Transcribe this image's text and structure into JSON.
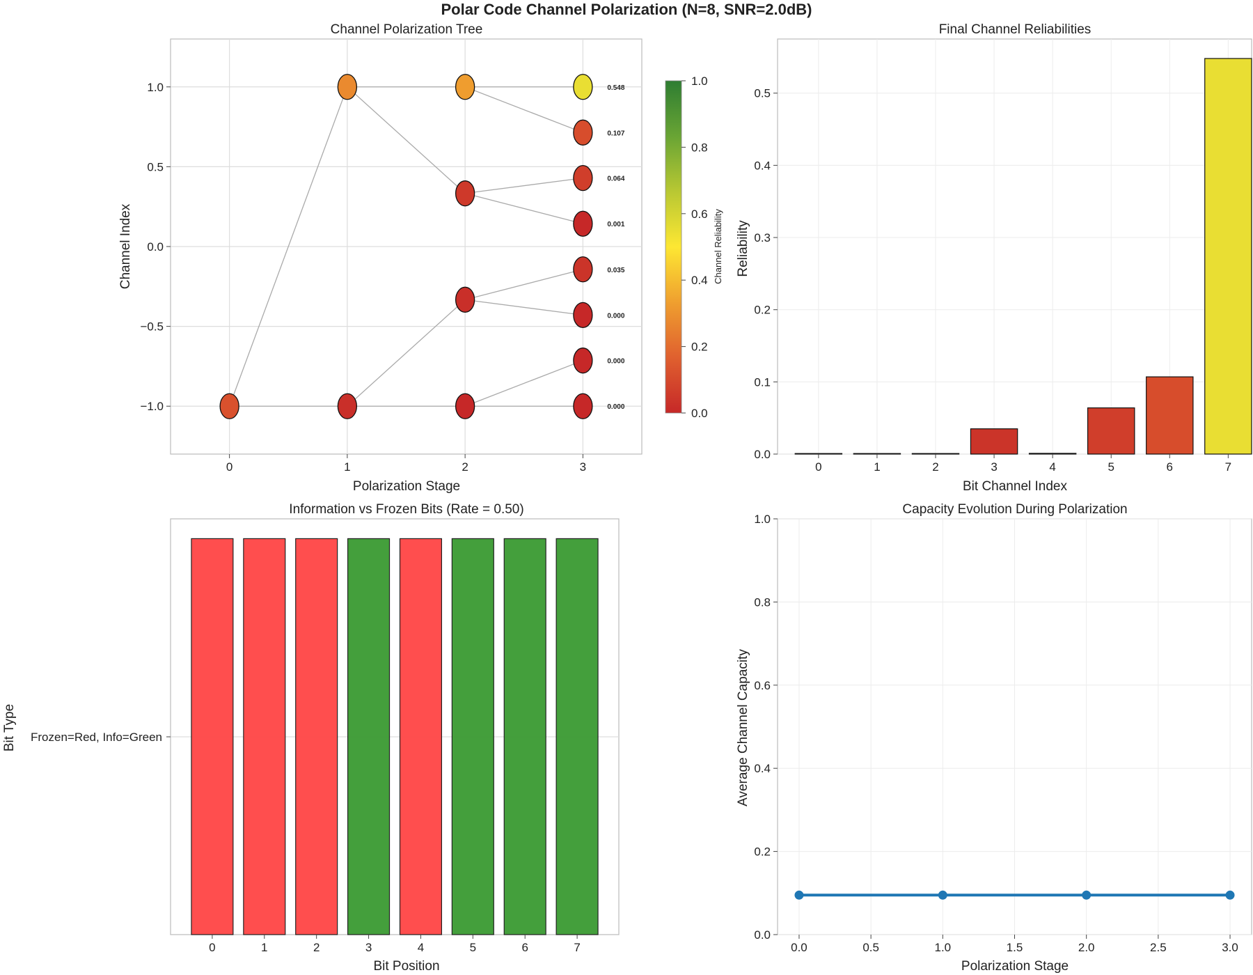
{
  "suptitle": "Polar Code Channel Polarization (N=8, SNR=2.0dB)",
  "colors": {
    "info": "#3a9a32",
    "frozen": "#ff4444",
    "line": "#1f77b4",
    "cmap": [
      "#c62828",
      "#e0612f",
      "#ef9e2f",
      "#fde733",
      "#b7c733",
      "#6aa534",
      "#2e7d32"
    ]
  },
  "chart_data": [
    {
      "type": "scatter",
      "title": "Channel Polarization Tree",
      "xlabel": "Polarization Stage",
      "ylabel": "Channel Index",
      "xlim": [
        -0.5,
        3.5
      ],
      "ylim": [
        -1.3,
        1.3
      ],
      "xticks": [
        "0",
        "1",
        "2",
        "3"
      ],
      "yticks": [
        "−1.0",
        "−0.5",
        "0.0",
        "0.5",
        "1.0"
      ],
      "ytick_values": [
        -1.0,
        -0.5,
        0.0,
        0.5,
        1.0
      ],
      "grid": true,
      "nodes": [
        {
          "x": 0,
          "y": -1.0,
          "r": 0.12
        },
        {
          "x": 1,
          "y": 1.0,
          "r": 0.28
        },
        {
          "x": 1,
          "y": -1.0,
          "r": 0.02
        },
        {
          "x": 2,
          "y": 1.0,
          "r": 0.33
        },
        {
          "x": 2,
          "y": 0.333,
          "r": 0.05
        },
        {
          "x": 2,
          "y": -0.333,
          "r": 0.02
        },
        {
          "x": 2,
          "y": -1.0,
          "r": 0.0
        },
        {
          "x": 3,
          "y": 1.0,
          "r": 0.548,
          "label": "0.548"
        },
        {
          "x": 3,
          "y": 0.714,
          "r": 0.107,
          "label": "0.107"
        },
        {
          "x": 3,
          "y": 0.429,
          "r": 0.064,
          "label": "0.064"
        },
        {
          "x": 3,
          "y": 0.143,
          "r": 0.001,
          "label": "0.001"
        },
        {
          "x": 3,
          "y": -0.143,
          "r": 0.035,
          "label": "0.035"
        },
        {
          "x": 3,
          "y": -0.429,
          "r": 0.0,
          "label": "0.000"
        },
        {
          "x": 3,
          "y": -0.714,
          "r": 0.0,
          "label": "0.000"
        },
        {
          "x": 3,
          "y": -1.0,
          "r": 0.0,
          "label": "0.000"
        }
      ],
      "edges": [
        [
          0,
          1
        ],
        [
          0,
          2
        ],
        [
          1,
          3
        ],
        [
          1,
          4
        ],
        [
          2,
          5
        ],
        [
          2,
          6
        ],
        [
          3,
          7
        ],
        [
          3,
          8
        ],
        [
          4,
          9
        ],
        [
          4,
          10
        ],
        [
          5,
          11
        ],
        [
          5,
          12
        ],
        [
          6,
          13
        ],
        [
          6,
          14
        ]
      ],
      "colorbar": {
        "label": "Channel Reliability",
        "range": [
          0.0,
          1.0
        ],
        "ticks": [
          "0.0",
          "0.2",
          "0.4",
          "0.6",
          "0.8",
          "1.0"
        ]
      }
    },
    {
      "type": "bar",
      "title": "Final Channel Reliabilities",
      "xlabel": "Bit Channel Index",
      "ylabel": "Reliability",
      "categories": [
        "0",
        "1",
        "2",
        "3",
        "4",
        "5",
        "6",
        "7"
      ],
      "values": [
        0.0,
        0.0,
        0.0,
        0.035,
        0.001,
        0.064,
        0.107,
        0.548
      ],
      "ylim": [
        0.0,
        0.575
      ],
      "yticks": [
        "0.0",
        "0.1",
        "0.2",
        "0.3",
        "0.4",
        "0.5"
      ],
      "grid": true
    },
    {
      "type": "bar",
      "title": "Information vs Frozen Bits (Rate = 0.50)",
      "xlabel": "Bit Position",
      "ylabel": "Bit Type",
      "categories": [
        "0",
        "1",
        "2",
        "3",
        "4",
        "5",
        "6",
        "7"
      ],
      "values": [
        1,
        1,
        1,
        1,
        1,
        1,
        1,
        1
      ],
      "bit_types": [
        "frozen",
        "frozen",
        "frozen",
        "info",
        "frozen",
        "info",
        "info",
        "info"
      ],
      "ytick_label": "Frozen=Red, Info=Green",
      "ylim": [
        0,
        1.05
      ],
      "grid": true
    },
    {
      "type": "line",
      "title": "Capacity Evolution During Polarization",
      "xlabel": "Polarization Stage",
      "ylabel": "Average Channel Capacity",
      "x": [
        0.0,
        1.0,
        2.0,
        3.0
      ],
      "values": [
        0.095,
        0.095,
        0.095,
        0.095
      ],
      "xlim": [
        -0.15,
        3.15
      ],
      "ylim": [
        0.0,
        1.0
      ],
      "xticks": [
        "0.0",
        "0.5",
        "1.0",
        "1.5",
        "2.0",
        "2.5",
        "3.0"
      ],
      "yticks": [
        "0.0",
        "0.2",
        "0.4",
        "0.6",
        "0.8",
        "1.0"
      ],
      "grid": true
    }
  ]
}
